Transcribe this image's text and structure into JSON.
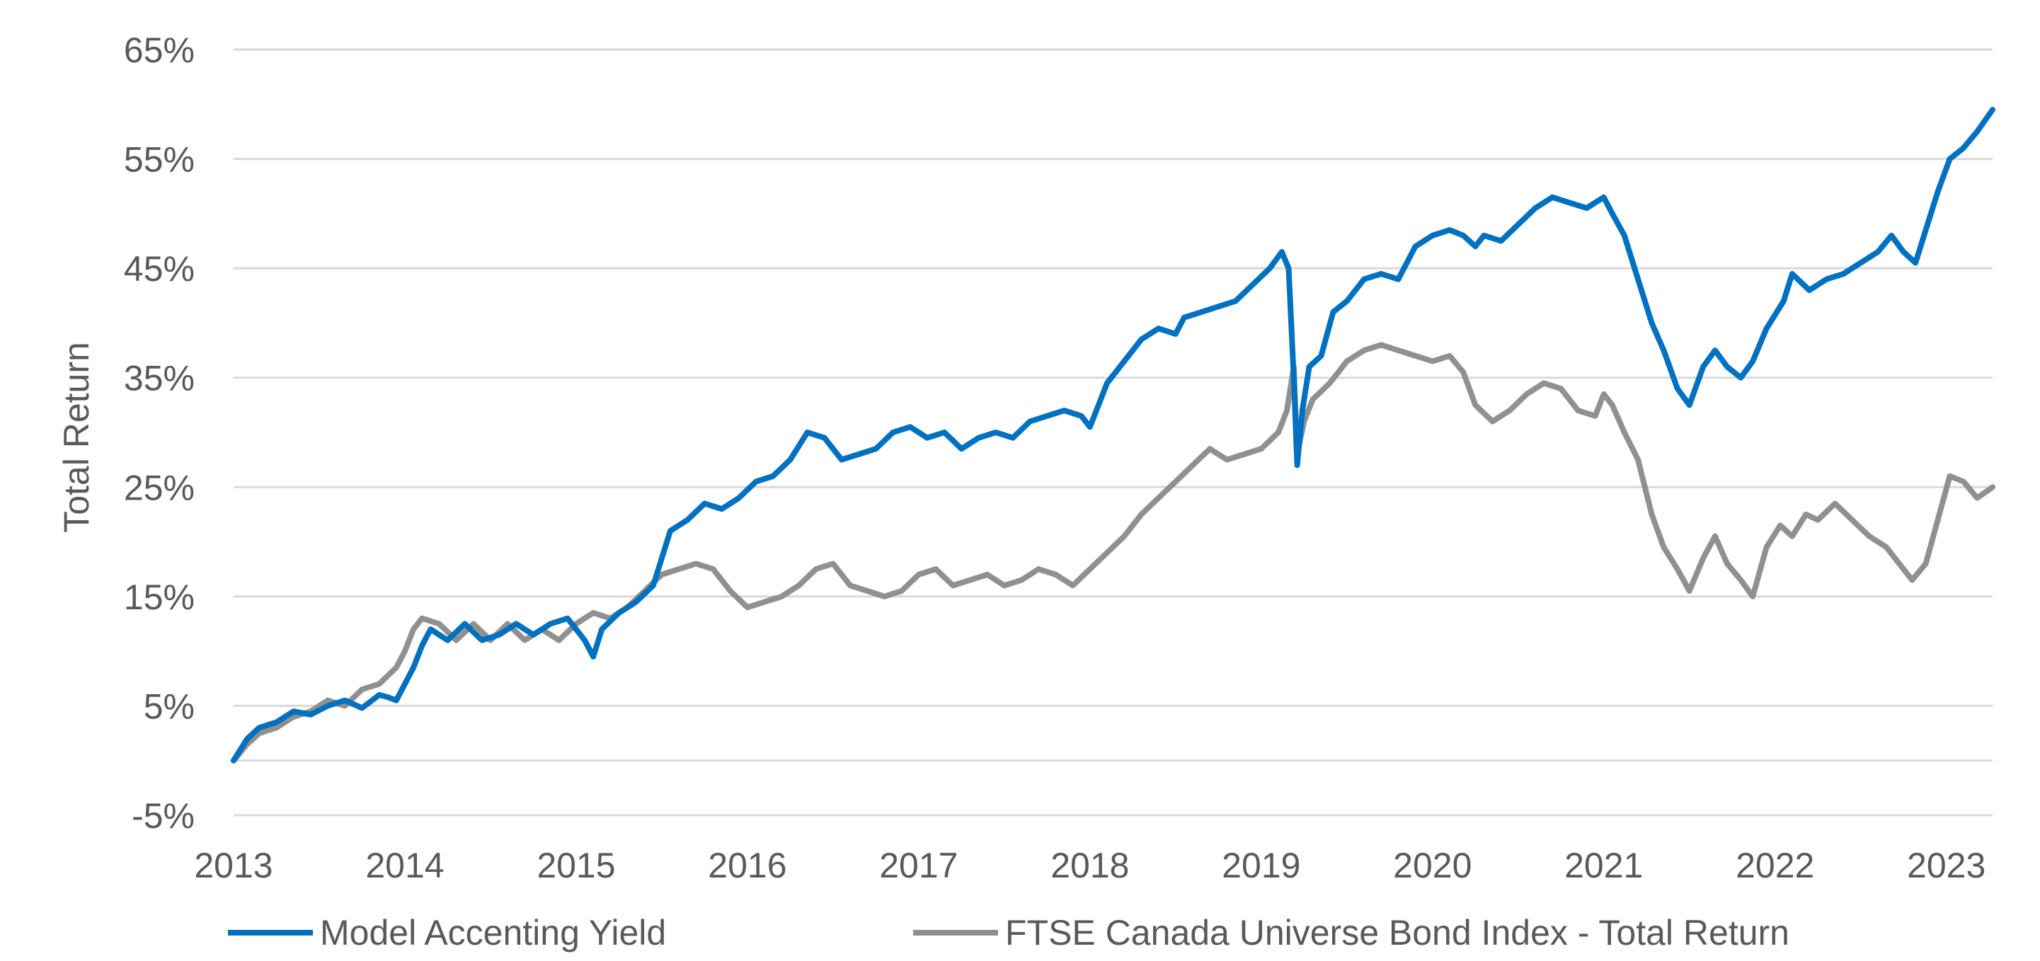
{
  "chart_data": {
    "type": "line",
    "ylabel": "Total Return",
    "xlabel": "",
    "ylim": [
      -5,
      65
    ],
    "xlim": [
      2013.0,
      2023.27
    ],
    "y_ticks": [
      "65%",
      "55%",
      "45%",
      "35%",
      "25%",
      "15%",
      "5%",
      "-5%"
    ],
    "y_tick_values": [
      65,
      55,
      45,
      35,
      25,
      15,
      5,
      -5
    ],
    "x_ticks": [
      "2013",
      "2014",
      "2015",
      "2016",
      "2017",
      "2018",
      "2019",
      "2020",
      "2021",
      "2022",
      "2023"
    ],
    "x_tick_values": [
      2013,
      2014,
      2015,
      2016,
      2017,
      2018,
      2019,
      2020,
      2021,
      2022,
      2023
    ],
    "grid": true,
    "legend": "bottom",
    "series": [
      {
        "name": "Model Accenting Yield",
        "color": "#0070c0",
        "points": [
          [
            2013.0,
            0
          ],
          [
            2013.08,
            2.0
          ],
          [
            2013.15,
            3.0
          ],
          [
            2013.25,
            3.5
          ],
          [
            2013.35,
            4.5
          ],
          [
            2013.45,
            4.2
          ],
          [
            2013.55,
            5.0
          ],
          [
            2013.65,
            5.5
          ],
          [
            2013.75,
            4.8
          ],
          [
            2013.85,
            6.0
          ],
          [
            2013.9,
            5.8
          ],
          [
            2013.95,
            5.5
          ],
          [
            2014.0,
            7.0
          ],
          [
            2014.05,
            8.5
          ],
          [
            2014.1,
            10.5
          ],
          [
            2014.15,
            12.0
          ],
          [
            2014.25,
            11.0
          ],
          [
            2014.35,
            12.5
          ],
          [
            2014.45,
            11.0
          ],
          [
            2014.55,
            11.5
          ],
          [
            2014.65,
            12.5
          ],
          [
            2014.75,
            11.5
          ],
          [
            2014.85,
            12.5
          ],
          [
            2014.95,
            13.0
          ],
          [
            2015.0,
            12.0
          ],
          [
            2015.05,
            11.0
          ],
          [
            2015.1,
            9.5
          ],
          [
            2015.15,
            12.0
          ],
          [
            2015.25,
            13.5
          ],
          [
            2015.35,
            14.5
          ],
          [
            2015.45,
            16.0
          ],
          [
            2015.5,
            18.5
          ],
          [
            2015.55,
            21.0
          ],
          [
            2015.65,
            22.0
          ],
          [
            2015.75,
            23.5
          ],
          [
            2015.85,
            23.0
          ],
          [
            2015.95,
            24.0
          ],
          [
            2016.05,
            25.5
          ],
          [
            2016.15,
            26.0
          ],
          [
            2016.25,
            27.5
          ],
          [
            2016.35,
            30.0
          ],
          [
            2016.45,
            29.5
          ],
          [
            2016.55,
            27.5
          ],
          [
            2016.65,
            28.0
          ],
          [
            2016.75,
            28.5
          ],
          [
            2016.85,
            30.0
          ],
          [
            2016.95,
            30.5
          ],
          [
            2017.05,
            29.5
          ],
          [
            2017.15,
            30.0
          ],
          [
            2017.25,
            28.5
          ],
          [
            2017.35,
            29.5
          ],
          [
            2017.45,
            30.0
          ],
          [
            2017.55,
            29.5
          ],
          [
            2017.65,
            31.0
          ],
          [
            2017.75,
            31.5
          ],
          [
            2017.85,
            32.0
          ],
          [
            2017.95,
            31.5
          ],
          [
            2018.0,
            30.5
          ],
          [
            2018.05,
            32.5
          ],
          [
            2018.1,
            34.5
          ],
          [
            2018.2,
            36.5
          ],
          [
            2018.3,
            38.5
          ],
          [
            2018.4,
            39.5
          ],
          [
            2018.5,
            39.0
          ],
          [
            2018.55,
            40.5
          ],
          [
            2018.65,
            41.0
          ],
          [
            2018.75,
            41.5
          ],
          [
            2018.85,
            42.0
          ],
          [
            2018.95,
            43.5
          ],
          [
            2019.05,
            45.0
          ],
          [
            2019.12,
            46.5
          ],
          [
            2019.16,
            45.0
          ],
          [
            2019.19,
            35.0
          ],
          [
            2019.21,
            27.0
          ],
          [
            2019.24,
            32.0
          ],
          [
            2019.28,
            36.0
          ],
          [
            2019.35,
            37.0
          ],
          [
            2019.42,
            41.0
          ],
          [
            2019.5,
            42.0
          ],
          [
            2019.6,
            44.0
          ],
          [
            2019.7,
            44.5
          ],
          [
            2019.8,
            44.0
          ],
          [
            2019.9,
            47.0
          ],
          [
            2020.0,
            48.0
          ],
          [
            2020.1,
            48.5
          ],
          [
            2020.18,
            48.0
          ],
          [
            2020.25,
            47.0
          ],
          [
            2020.3,
            48.0
          ],
          [
            2020.4,
            47.5
          ],
          [
            2020.5,
            49.0
          ],
          [
            2020.6,
            50.5
          ],
          [
            2020.7,
            51.5
          ],
          [
            2020.8,
            51.0
          ],
          [
            2020.9,
            50.5
          ],
          [
            2020.95,
            51.0
          ],
          [
            2021.0,
            51.5
          ],
          [
            2021.05,
            50.0
          ],
          [
            2021.12,
            48.0
          ],
          [
            2021.2,
            44.0
          ],
          [
            2021.28,
            40.0
          ],
          [
            2021.35,
            37.5
          ],
          [
            2021.43,
            34.0
          ],
          [
            2021.5,
            32.5
          ],
          [
            2021.58,
            36.0
          ],
          [
            2021.65,
            37.5
          ],
          [
            2021.72,
            36.0
          ],
          [
            2021.8,
            35.0
          ],
          [
            2021.87,
            36.5
          ],
          [
            2021.95,
            39.5
          ],
          [
            2022.05,
            42.0
          ],
          [
            2022.1,
            44.5
          ],
          [
            2022.2,
            43.0
          ],
          [
            2022.3,
            44.0
          ],
          [
            2022.4,
            44.5
          ],
          [
            2022.5,
            45.5
          ],
          [
            2022.6,
            46.5
          ],
          [
            2022.68,
            48.0
          ],
          [
            2022.75,
            46.5
          ],
          [
            2022.82,
            45.5
          ],
          [
            2022.88,
            48.5
          ],
          [
            2022.95,
            52.0
          ],
          [
            2023.02,
            55.0
          ],
          [
            2023.1,
            56.0
          ],
          [
            2023.18,
            57.5
          ],
          [
            2023.27,
            59.5
          ]
        ]
      },
      {
        "name": "FTSE Canada Universe Bond Index - Total Return",
        "color": "#909090",
        "points": [
          [
            2013.0,
            0
          ],
          [
            2013.08,
            1.5
          ],
          [
            2013.15,
            2.5
          ],
          [
            2013.25,
            3.0
          ],
          [
            2013.35,
            4.0
          ],
          [
            2013.45,
            4.5
          ],
          [
            2013.55,
            5.5
          ],
          [
            2013.65,
            5.0
          ],
          [
            2013.75,
            6.5
          ],
          [
            2013.85,
            7.0
          ],
          [
            2013.95,
            8.5
          ],
          [
            2014.0,
            10.0
          ],
          [
            2014.05,
            12.0
          ],
          [
            2014.1,
            13.0
          ],
          [
            2014.2,
            12.5
          ],
          [
            2014.3,
            11.0
          ],
          [
            2014.4,
            12.5
          ],
          [
            2014.5,
            11.0
          ],
          [
            2014.6,
            12.5
          ],
          [
            2014.7,
            11.0
          ],
          [
            2014.8,
            12.0
          ],
          [
            2014.9,
            11.0
          ],
          [
            2015.0,
            12.5
          ],
          [
            2015.1,
            13.5
          ],
          [
            2015.2,
            13.0
          ],
          [
            2015.3,
            14.0
          ],
          [
            2015.4,
            15.5
          ],
          [
            2015.5,
            17.0
          ],
          [
            2015.6,
            17.5
          ],
          [
            2015.7,
            18.0
          ],
          [
            2015.8,
            17.5
          ],
          [
            2015.9,
            15.5
          ],
          [
            2016.0,
            14.0
          ],
          [
            2016.1,
            14.5
          ],
          [
            2016.2,
            15.0
          ],
          [
            2016.3,
            16.0
          ],
          [
            2016.4,
            17.5
          ],
          [
            2016.5,
            18.0
          ],
          [
            2016.6,
            16.0
          ],
          [
            2016.7,
            15.5
          ],
          [
            2016.8,
            15.0
          ],
          [
            2016.9,
            15.5
          ],
          [
            2017.0,
            17.0
          ],
          [
            2017.1,
            17.5
          ],
          [
            2017.2,
            16.0
          ],
          [
            2017.3,
            16.5
          ],
          [
            2017.4,
            17.0
          ],
          [
            2017.5,
            16.0
          ],
          [
            2017.6,
            16.5
          ],
          [
            2017.7,
            17.5
          ],
          [
            2017.8,
            17.0
          ],
          [
            2017.9,
            16.0
          ],
          [
            2018.0,
            17.5
          ],
          [
            2018.1,
            19.0
          ],
          [
            2018.2,
            20.5
          ],
          [
            2018.3,
            22.5
          ],
          [
            2018.4,
            24.0
          ],
          [
            2018.5,
            25.5
          ],
          [
            2018.6,
            27.0
          ],
          [
            2018.7,
            28.5
          ],
          [
            2018.8,
            27.5
          ],
          [
            2018.9,
            28.0
          ],
          [
            2019.0,
            28.5
          ],
          [
            2019.1,
            30.0
          ],
          [
            2019.15,
            32.0
          ],
          [
            2019.19,
            36.0
          ],
          [
            2019.21,
            28.0
          ],
          [
            2019.25,
            31.0
          ],
          [
            2019.3,
            33.0
          ],
          [
            2019.4,
            34.5
          ],
          [
            2019.5,
            36.5
          ],
          [
            2019.6,
            37.5
          ],
          [
            2019.7,
            38.0
          ],
          [
            2019.8,
            37.5
          ],
          [
            2019.9,
            37.0
          ],
          [
            2020.0,
            36.5
          ],
          [
            2020.1,
            37.0
          ],
          [
            2020.18,
            35.5
          ],
          [
            2020.25,
            32.5
          ],
          [
            2020.35,
            31.0
          ],
          [
            2020.45,
            32.0
          ],
          [
            2020.55,
            33.5
          ],
          [
            2020.65,
            34.5
          ],
          [
            2020.75,
            34.0
          ],
          [
            2020.85,
            32.0
          ],
          [
            2020.95,
            31.5
          ],
          [
            2021.0,
            33.5
          ],
          [
            2021.05,
            32.5
          ],
          [
            2021.12,
            30.0
          ],
          [
            2021.2,
            27.5
          ],
          [
            2021.28,
            22.5
          ],
          [
            2021.35,
            19.5
          ],
          [
            2021.43,
            17.5
          ],
          [
            2021.5,
            15.5
          ],
          [
            2021.58,
            18.5
          ],
          [
            2021.65,
            20.5
          ],
          [
            2021.72,
            18.0
          ],
          [
            2021.8,
            16.5
          ],
          [
            2021.87,
            15.0
          ],
          [
            2021.95,
            19.5
          ],
          [
            2022.03,
            21.5
          ],
          [
            2022.1,
            20.5
          ],
          [
            2022.18,
            22.5
          ],
          [
            2022.25,
            22.0
          ],
          [
            2022.35,
            23.5
          ],
          [
            2022.45,
            22.0
          ],
          [
            2022.55,
            20.5
          ],
          [
            2022.65,
            19.5
          ],
          [
            2022.75,
            17.5
          ],
          [
            2022.8,
            16.5
          ],
          [
            2022.88,
            18.0
          ],
          [
            2022.95,
            22.0
          ],
          [
            2023.02,
            26.0
          ],
          [
            2023.1,
            25.5
          ],
          [
            2023.18,
            24.0
          ],
          [
            2023.27,
            25.0
          ]
        ]
      }
    ]
  }
}
